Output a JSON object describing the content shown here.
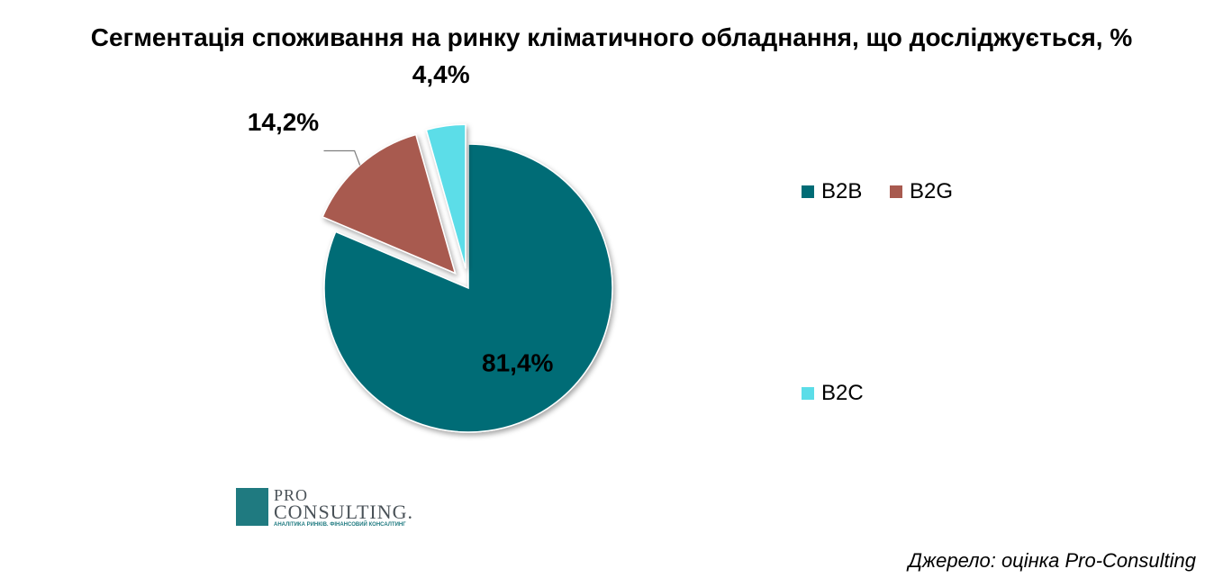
{
  "title": "Сегментація споживання на ринку кліматичного обладнання, що досліджується, %",
  "source": "Джерело: оцінка Pro-Consulting",
  "logo": {
    "pro": "PRO",
    "consulting": "CONSULTING.",
    "tagline": "АНАЛІТИКА РИНКІВ. ФІНАНСОВИЙ КОНСАЛТИНГ"
  },
  "chart_data": {
    "type": "pie",
    "title": "Сегментація споживання на ринку кліматичного обладнання, що досліджується, %",
    "slices": [
      {
        "label": "B2B",
        "value": 81.4,
        "display": "81,4%",
        "color": "#006c76",
        "exploded": false
      },
      {
        "label": "B2G",
        "value": 14.2,
        "display": "14,2%",
        "color": "#a85a4f",
        "exploded": true
      },
      {
        "label": "B2C",
        "value": 4.4,
        "display": "4,4%",
        "color": "#5bdde8",
        "exploded": true
      }
    ],
    "legend_position": "right"
  }
}
